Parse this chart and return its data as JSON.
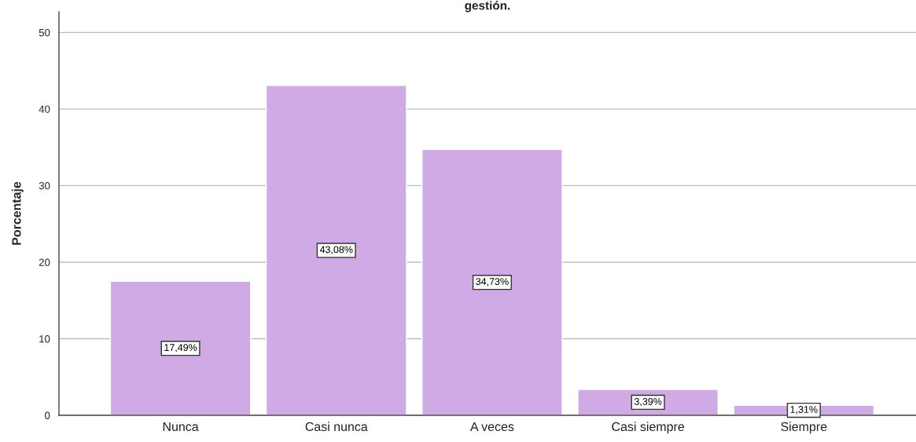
{
  "chart_data": {
    "type": "bar",
    "title": "gestión.",
    "ylabel": "Porcentaje",
    "categories": [
      "Nunca",
      "Casi nunca",
      "A veces",
      "Casi siempre",
      "Siempre"
    ],
    "values": [
      17.49,
      43.08,
      34.73,
      3.39,
      1.31
    ],
    "value_labels": [
      "17,49%",
      "43,08%",
      "34,73%",
      "3,39%",
      "1,31%"
    ],
    "color": "#cfaae4",
    "ylim": [
      0,
      52.7
    ],
    "yticks": [
      0,
      10,
      20,
      30,
      40,
      50
    ],
    "grid": "y",
    "legend": false
  }
}
